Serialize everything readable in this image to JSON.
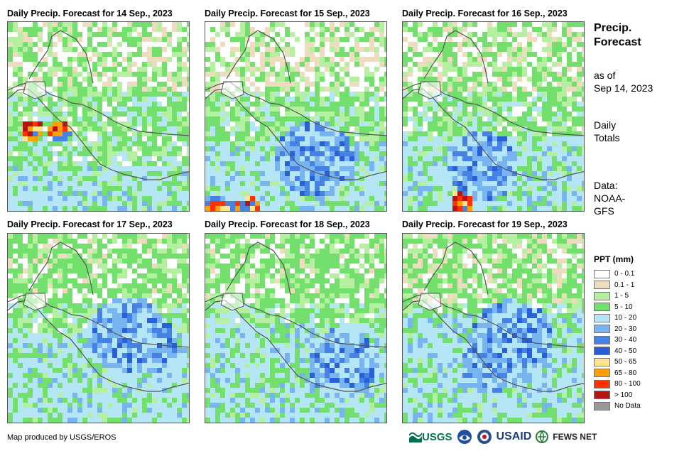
{
  "panels": [
    {
      "title": "Daily Precip. Forecast for 14 Sep., 2023"
    },
    {
      "title": "Daily Precip. Forecast for 15 Sep., 2023"
    },
    {
      "title": "Daily Precip. Forecast for 16 Sep., 2023"
    },
    {
      "title": "Daily Precip. Forecast for 17 Sep., 2023"
    },
    {
      "title": "Daily Precip. Forecast for 18 Sep., 2023"
    },
    {
      "title": "Daily Precip. Forecast for 19 Sep., 2023"
    }
  ],
  "side": {
    "title_line1": "Precip.",
    "title_line2": "Forecast",
    "asof_line1": "as of",
    "asof_line2": "Sep 14, 2023",
    "totals_line1": "Daily",
    "totals_line2": "Totals",
    "data_line1": "Data:",
    "data_line2": "NOAA-",
    "data_line3": "GFS"
  },
  "legend": {
    "title": "PPT (mm)",
    "items": [
      {
        "label": "0 - 0.1",
        "color": "#ffffff"
      },
      {
        "label": "0.1 - 1",
        "color": "#eedcbe"
      },
      {
        "label": "1 - 5",
        "color": "#b4f0a0"
      },
      {
        "label": "5 - 10",
        "color": "#73e06e"
      },
      {
        "label": "10 - 20",
        "color": "#b4e6f5"
      },
      {
        "label": "20 - 30",
        "color": "#78b4f0"
      },
      {
        "label": "30 - 40",
        "color": "#4682e6"
      },
      {
        "label": "40 - 50",
        "color": "#2860d8"
      },
      {
        "label": "50 - 65",
        "color": "#ffe68c"
      },
      {
        "label": "65 - 80",
        "color": "#ffa000"
      },
      {
        "label": "80 - 100",
        "color": "#ff3200"
      },
      {
        "label": "> 100",
        "color": "#b41414"
      },
      {
        "label": "No Data",
        "color": "#999999"
      }
    ]
  },
  "footer": {
    "credit": "Map produced by USGS/EROS",
    "usgs": "USGS",
    "usaid": "USAID",
    "fewsnet": "FEWS NET"
  }
}
